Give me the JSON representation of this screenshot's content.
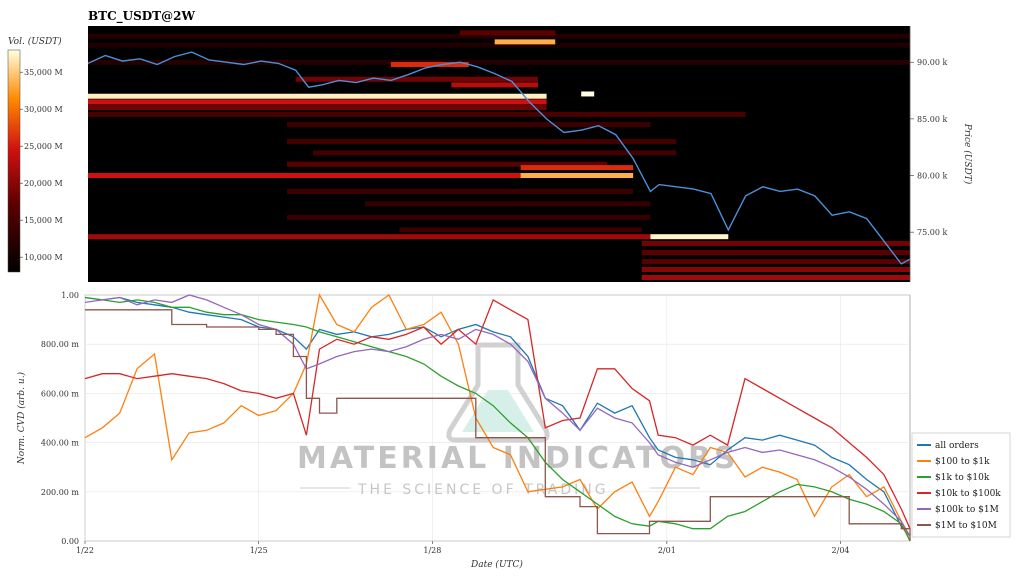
{
  "title": "BTC_USDT@2W",
  "watermark": {
    "brand": "MATERIAL INDICATORS",
    "tagline": "THE SCIENCE OF TRADING"
  },
  "chart_data": [
    {
      "type": "heatmap",
      "name": "orderbook-liquidity",
      "x_label": "",
      "y_label": "Price (USDT)",
      "y_ticks": [
        {
          "value": 90,
          "label": "90.00 k"
        },
        {
          "value": 85,
          "label": "85.00 k"
        },
        {
          "value": 80,
          "label": "80.00 k"
        },
        {
          "value": 75,
          "label": "75.00 k"
        }
      ],
      "ylim": [
        70.6,
        93.2
      ],
      "colorbar": {
        "label": "Vol. (USDT)",
        "range": [
          8000000,
          38000000
        ],
        "ticks": [
          {
            "value": 35,
            "label": "35,000 M"
          },
          {
            "value": 30,
            "label": "30,000 M"
          },
          {
            "value": 25,
            "label": "25,000 M"
          },
          {
            "value": 20,
            "label": "20,000 M"
          },
          {
            "value": 15,
            "label": "15,000 M"
          },
          {
            "value": 10,
            "label": "10,000 M"
          }
        ]
      },
      "bands": [
        {
          "price": 87.0,
          "x0": 0.0,
          "x1": 5.3,
          "intensity": 0.97
        },
        {
          "price": 86.5,
          "x0": 0.0,
          "x1": 5.3,
          "intensity": 0.55
        },
        {
          "price": 86.0,
          "x0": 0.0,
          "x1": 5.3,
          "intensity": 0.35
        },
        {
          "price": 85.4,
          "x0": 0.0,
          "x1": 7.6,
          "intensity": 0.25
        },
        {
          "price": 84.5,
          "x0": 2.3,
          "x1": 6.5,
          "intensity": 0.2
        },
        {
          "price": 83.0,
          "x0": 2.3,
          "x1": 6.8,
          "intensity": 0.22
        },
        {
          "price": 82.0,
          "x0": 2.6,
          "x1": 6.8,
          "intensity": 0.22
        },
        {
          "price": 81.0,
          "x0": 2.3,
          "x1": 6.0,
          "intensity": 0.3
        },
        {
          "price": 80.0,
          "x0": 0.0,
          "x1": 6.3,
          "intensity": 0.55
        },
        {
          "price": 80.0,
          "x0": 5.0,
          "x1": 6.3,
          "intensity": 0.85
        },
        {
          "price": 80.7,
          "x0": 5.0,
          "x1": 6.3,
          "intensity": 0.6
        },
        {
          "price": 78.6,
          "x0": 2.3,
          "x1": 6.3,
          "intensity": 0.2
        },
        {
          "price": 77.5,
          "x0": 3.2,
          "x1": 6.5,
          "intensity": 0.18
        },
        {
          "price": 76.3,
          "x0": 2.3,
          "x1": 6.5,
          "intensity": 0.18
        },
        {
          "price": 75.2,
          "x0": 3.6,
          "x1": 6.4,
          "intensity": 0.2
        },
        {
          "price": 74.6,
          "x0": 0.0,
          "x1": 6.5,
          "intensity": 0.45
        },
        {
          "price": 74.6,
          "x0": 6.5,
          "x1": 7.4,
          "intensity": 0.98
        },
        {
          "price": 74.0,
          "x0": 6.4,
          "x1": 9.5,
          "intensity": 0.35
        },
        {
          "price": 73.2,
          "x0": 6.4,
          "x1": 9.5,
          "intensity": 0.3
        },
        {
          "price": 72.4,
          "x0": 6.4,
          "x1": 9.5,
          "intensity": 0.3
        },
        {
          "price": 71.7,
          "x0": 6.4,
          "x1": 9.5,
          "intensity": 0.4
        },
        {
          "price": 71.0,
          "x0": 6.4,
          "x1": 9.5,
          "intensity": 0.45
        },
        {
          "price": 90.0,
          "x0": 0.0,
          "x1": 9.5,
          "intensity": 0.12
        },
        {
          "price": 91.5,
          "x0": 0.0,
          "x1": 9.5,
          "intensity": 0.1
        },
        {
          "price": 92.3,
          "x0": 0.0,
          "x1": 9.5,
          "intensity": 0.12
        },
        {
          "price": 92.6,
          "x0": 4.3,
          "x1": 5.4,
          "intensity": 0.3
        },
        {
          "price": 91.8,
          "x0": 4.7,
          "x1": 5.4,
          "intensity": 0.85
        },
        {
          "price": 89.8,
          "x0": 3.5,
          "x1": 4.4,
          "intensity": 0.6
        },
        {
          "price": 88.5,
          "x0": 2.4,
          "x1": 5.2,
          "intensity": 0.35
        },
        {
          "price": 88.0,
          "x0": 4.2,
          "x1": 5.2,
          "intensity": 0.5
        },
        {
          "price": 87.2,
          "x0": 5.7,
          "x1": 5.85,
          "intensity": 1.0
        }
      ],
      "price_series": {
        "name": "BTC price",
        "x": [
          0.0,
          0.2,
          0.4,
          0.6,
          0.8,
          1.0,
          1.2,
          1.4,
          1.6,
          1.8,
          2.0,
          2.2,
          2.4,
          2.55,
          2.7,
          2.9,
          3.1,
          3.3,
          3.5,
          3.7,
          3.9,
          4.1,
          4.3,
          4.5,
          4.7,
          4.9,
          5.1,
          5.3,
          5.5,
          5.7,
          5.9,
          6.1,
          6.3,
          6.5,
          6.6,
          6.8,
          7.0,
          7.2,
          7.4,
          7.6,
          7.8,
          8.0,
          8.2,
          8.4,
          8.6,
          8.8,
          9.0,
          9.2,
          9.4,
          9.5
        ],
        "y": [
          89.9,
          90.6,
          90.1,
          90.3,
          89.8,
          90.5,
          90.9,
          90.2,
          90.0,
          89.8,
          90.1,
          89.9,
          89.3,
          87.8,
          88.0,
          88.4,
          88.2,
          88.6,
          88.4,
          88.9,
          89.5,
          89.8,
          90.0,
          89.6,
          89.0,
          88.3,
          86.5,
          85.0,
          83.8,
          84.0,
          84.4,
          83.6,
          81.5,
          78.6,
          79.2,
          79.0,
          78.8,
          78.4,
          75.2,
          78.2,
          79.0,
          78.6,
          78.8,
          78.2,
          76.5,
          76.8,
          76.2,
          74.2,
          72.2,
          72.6
        ]
      }
    },
    {
      "type": "line",
      "name": "normalized-cvd",
      "x_label": "Date (UTC)",
      "y_label": "Norm. CVD (arb. u.)",
      "x_ticks": [
        {
          "value": 0.0,
          "label": "1/22"
        },
        {
          "value": 2.0,
          "label": "1/25"
        },
        {
          "value": 4.0,
          "label": "1/28"
        },
        {
          "value": 6.7,
          "label": "2/01"
        },
        {
          "value": 8.7,
          "label": "2/04"
        }
      ],
      "xlim": [
        0.0,
        9.5
      ],
      "y_ticks": [
        {
          "value": 1.0,
          "label": "1.00"
        },
        {
          "value": 0.8,
          "label": "800.00 m"
        },
        {
          "value": 0.6,
          "label": "600.00 m"
        },
        {
          "value": 0.4,
          "label": "400.00 m"
        },
        {
          "value": 0.2,
          "label": "200.00 m"
        },
        {
          "value": 0.0,
          "label": "0.00"
        }
      ],
      "ylim": [
        0.0,
        1.0
      ],
      "legend_position": "right",
      "x": [
        0.0,
        0.2,
        0.4,
        0.6,
        0.8,
        1.0,
        1.2,
        1.4,
        1.6,
        1.8,
        2.0,
        2.2,
        2.4,
        2.55,
        2.7,
        2.9,
        3.1,
        3.3,
        3.5,
        3.7,
        3.9,
        4.1,
        4.3,
        4.5,
        4.7,
        4.9,
        5.1,
        5.3,
        5.5,
        5.7,
        5.9,
        6.1,
        6.3,
        6.5,
        6.6,
        6.8,
        7.0,
        7.2,
        7.4,
        7.6,
        7.8,
        8.0,
        8.2,
        8.4,
        8.6,
        8.8,
        9.0,
        9.2,
        9.4,
        9.5
      ],
      "series": [
        {
          "name": "all orders",
          "color": "#1f77b4",
          "values": [
            0.99,
            0.98,
            0.99,
            0.97,
            0.96,
            0.95,
            0.93,
            0.92,
            0.91,
            0.9,
            0.87,
            0.86,
            0.83,
            0.78,
            0.86,
            0.84,
            0.85,
            0.83,
            0.84,
            0.86,
            0.87,
            0.83,
            0.86,
            0.88,
            0.85,
            0.83,
            0.75,
            0.58,
            0.55,
            0.45,
            0.56,
            0.52,
            0.55,
            0.42,
            0.37,
            0.34,
            0.33,
            0.31,
            0.37,
            0.42,
            0.41,
            0.43,
            0.41,
            0.39,
            0.34,
            0.31,
            0.25,
            0.2,
            0.06,
            0.02
          ]
        },
        {
          "name": "$100 to $1k",
          "color": "#ff7f0e",
          "values": [
            0.42,
            0.46,
            0.52,
            0.7,
            0.76,
            0.33,
            0.44,
            0.45,
            0.48,
            0.55,
            0.51,
            0.53,
            0.6,
            0.72,
            1.0,
            0.88,
            0.85,
            0.95,
            1.0,
            0.86,
            0.88,
            0.93,
            0.8,
            0.5,
            0.38,
            0.35,
            0.2,
            0.21,
            0.22,
            0.25,
            0.13,
            0.2,
            0.24,
            0.1,
            0.16,
            0.3,
            0.27,
            0.38,
            0.36,
            0.26,
            0.3,
            0.28,
            0.25,
            0.1,
            0.22,
            0.27,
            0.18,
            0.22,
            0.08,
            0.0
          ]
        },
        {
          "name": "$1k to $10k",
          "color": "#2ca02c",
          "values": [
            0.99,
            0.98,
            0.97,
            0.98,
            0.97,
            0.95,
            0.95,
            0.93,
            0.92,
            0.92,
            0.9,
            0.89,
            0.88,
            0.87,
            0.85,
            0.83,
            0.81,
            0.79,
            0.77,
            0.75,
            0.72,
            0.67,
            0.63,
            0.6,
            0.55,
            0.48,
            0.42,
            0.32,
            0.25,
            0.2,
            0.15,
            0.1,
            0.07,
            0.06,
            0.08,
            0.07,
            0.05,
            0.05,
            0.1,
            0.12,
            0.16,
            0.2,
            0.23,
            0.22,
            0.2,
            0.17,
            0.15,
            0.12,
            0.07,
            0.0
          ]
        },
        {
          "name": "$10k to $100k",
          "color": "#d62728",
          "values": [
            0.66,
            0.68,
            0.68,
            0.66,
            0.67,
            0.68,
            0.67,
            0.66,
            0.64,
            0.61,
            0.6,
            0.58,
            0.6,
            0.43,
            0.78,
            0.82,
            0.8,
            0.83,
            0.82,
            0.84,
            0.87,
            0.8,
            0.86,
            0.8,
            0.98,
            0.94,
            0.9,
            0.46,
            0.49,
            0.5,
            0.7,
            0.7,
            0.62,
            0.57,
            0.43,
            0.42,
            0.39,
            0.43,
            0.39,
            0.66,
            0.62,
            0.58,
            0.54,
            0.5,
            0.46,
            0.4,
            0.34,
            0.27,
            0.13,
            0.05
          ]
        },
        {
          "name": "$100k to $1M",
          "color": "#9467bd",
          "values": [
            0.97,
            0.98,
            0.99,
            0.96,
            0.98,
            0.97,
            1.0,
            0.98,
            0.95,
            0.92,
            0.88,
            0.86,
            0.8,
            0.7,
            0.72,
            0.75,
            0.77,
            0.78,
            0.77,
            0.79,
            0.82,
            0.84,
            0.82,
            0.86,
            0.84,
            0.8,
            0.73,
            0.58,
            0.52,
            0.45,
            0.54,
            0.5,
            0.48,
            0.4,
            0.35,
            0.32,
            0.3,
            0.33,
            0.36,
            0.38,
            0.36,
            0.37,
            0.35,
            0.33,
            0.3,
            0.26,
            0.21,
            0.15,
            0.08,
            0.02
          ]
        },
        {
          "name": "$1M to $10M",
          "color": "#8c564b",
          "values": [
            0.94,
            0.94,
            0.94,
            0.94,
            0.94,
            0.88,
            0.88,
            0.87,
            0.87,
            0.87,
            0.86,
            0.84,
            0.75,
            0.58,
            0.52,
            0.58,
            0.58,
            0.58,
            0.58,
            0.58,
            0.58,
            0.58,
            0.58,
            0.42,
            0.42,
            0.42,
            0.42,
            0.18,
            0.18,
            0.14,
            0.03,
            0.03,
            0.03,
            0.08,
            0.08,
            0.08,
            0.08,
            0.18,
            0.18,
            0.18,
            0.18,
            0.18,
            0.18,
            0.18,
            0.18,
            0.07,
            0.07,
            0.07,
            0.05,
            0.0
          ]
        }
      ]
    }
  ]
}
